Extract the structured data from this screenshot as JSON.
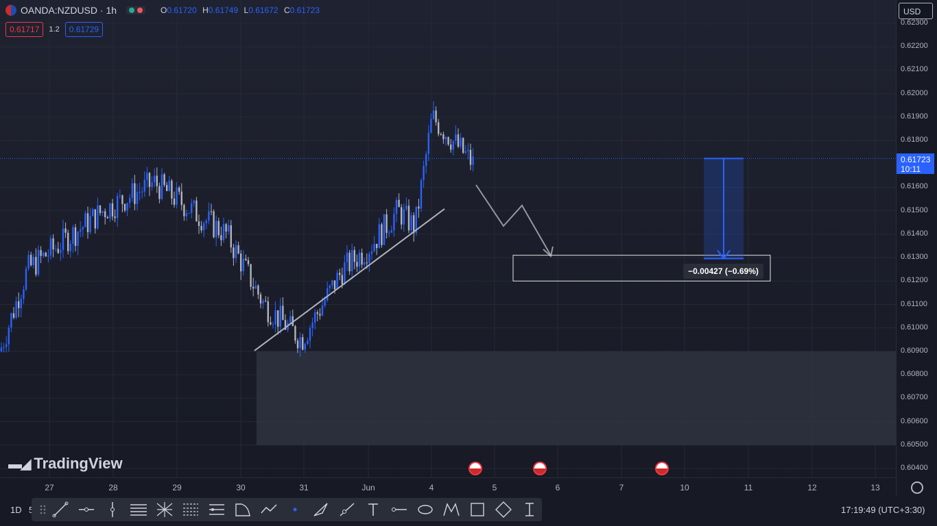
{
  "legend": {
    "symbol": "OANDA:NZDUSD · 1h",
    "open_label": "O",
    "open": "0.61720",
    "high_label": "H",
    "high": "0.61749",
    "low_label": "L",
    "low": "0.61672",
    "close_label": "C",
    "close": "0.61723",
    "flag_icon": "nz-us-flag-icon"
  },
  "spread": {
    "sell": "0.61717",
    "spread": "1.2",
    "buy": "0.61729"
  },
  "currency": "USD",
  "price_axis": {
    "ticks": [
      "0.62300",
      "0.62200",
      "0.62100",
      "0.62000",
      "0.61900",
      "0.61800",
      "0.61600",
      "0.61500",
      "0.61400",
      "0.61300",
      "0.61200",
      "0.61100",
      "0.61000",
      "0.60900",
      "0.60800",
      "0.60700",
      "0.60600",
      "0.60500",
      "0.60400"
    ],
    "last_price": "0.61723",
    "countdown": "10:11"
  },
  "time_axis": [
    "27",
    "28",
    "29",
    "30",
    "31",
    "Jun",
    "4",
    "5",
    "6",
    "7",
    "10",
    "11",
    "12",
    "13"
  ],
  "measure": {
    "label": "−0.00427 (−0.69%)"
  },
  "brand": {
    "name": "TradingView"
  },
  "bottom_bar": {
    "interval": "1D",
    "interval_extra": "5",
    "clock": "17:19:49 (UTC+3:30)"
  },
  "colors": {
    "up": "#2962ff",
    "down": "#b2b5be",
    "accent": "#2962ff",
    "sell": "#f23645"
  },
  "chart_data": {
    "type": "candlestick",
    "symbol": "OANDA:NZDUSD",
    "interval": "1h",
    "y_range": [
      0.6035,
      0.6235
    ],
    "x_labels": [
      "27",
      "28",
      "29",
      "30",
      "31",
      "Jun",
      "4",
      "5",
      "6",
      "7",
      "10",
      "11",
      "12",
      "13"
    ],
    "last_bar": {
      "open": 0.6172,
      "high": 0.61749,
      "low": 0.61672,
      "close": 0.61723
    },
    "approx_close_path": [
      [
        "27",
        0.609
      ],
      [
        "27",
        0.6125
      ],
      [
        "28",
        0.615
      ],
      [
        "28",
        0.6162
      ],
      [
        "29",
        0.6148
      ],
      [
        "29",
        0.614
      ],
      [
        "30",
        0.611
      ],
      [
        "30",
        0.6095
      ],
      [
        "31",
        0.6125
      ],
      [
        "31",
        0.6135
      ],
      [
        "Jun",
        0.615
      ],
      [
        "Jun",
        0.6143
      ],
      [
        "4",
        0.619
      ],
      [
        "4",
        0.617
      ]
    ],
    "annotations": {
      "trendline": {
        "from": [
          "30",
          0.609
        ],
        "to": [
          "Jun",
          0.615
        ]
      },
      "support_zone": {
        "from": 0.609,
        "to": 0.605
      },
      "target_box": {
        "from": 0.6131,
        "to": 0.612
      },
      "measure": {
        "from": 0.61723,
        "to": 0.61296,
        "label": "−0.00427 (−0.69%)"
      }
    }
  }
}
